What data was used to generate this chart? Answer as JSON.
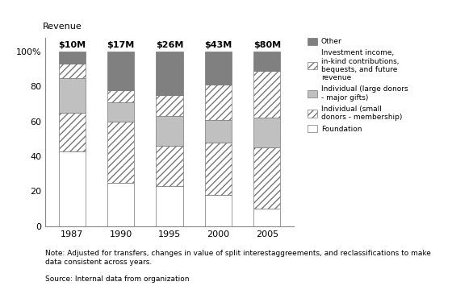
{
  "years": [
    "1987",
    "1990",
    "1995",
    "2000",
    "2005"
  ],
  "totals": [
    "$10M",
    "$17M",
    "$26M",
    "$43M",
    "$80M"
  ],
  "data": {
    "Foundation": [
      43,
      25,
      23,
      18,
      10
    ],
    "Small donors": [
      22,
      35,
      23,
      30,
      35
    ],
    "Large donors": [
      20,
      11,
      17,
      13,
      17
    ],
    "Investment": [
      8,
      7,
      12,
      20,
      27
    ],
    "Other": [
      7,
      22,
      25,
      19,
      11
    ]
  },
  "colors": {
    "Foundation": "#ffffff",
    "Small donors": "#ffffff",
    "Large donors": "#c0c0c0",
    "Investment": "#ffffff",
    "Other": "#808080"
  },
  "hatches": {
    "Foundation": "",
    "Small donors": "////",
    "Large donors": "",
    "Investment": "////",
    "Other": ""
  },
  "bar_edge_color": "#777777",
  "bar_width": 0.55,
  "ylabel_text": "Revenue",
  "ytick_labels": [
    "0",
    "20",
    "40",
    "60",
    "80",
    "100%"
  ],
  "ytick_values": [
    0,
    20,
    40,
    60,
    80,
    100
  ],
  "ylim": [
    0,
    108
  ],
  "note": "Note: Adjusted for transfers, changes in value of split interestaggreements, and reclassifications to make\ndata consistent across years.",
  "source": "Source: Internal data from organization",
  "legend": [
    {
      "label": "Other",
      "facecolor": "#808080",
      "hatch": ""
    },
    {
      "label": "Investment income,\nin-kind contributions,\nbequests, and future\nrevenue",
      "facecolor": "#ffffff",
      "hatch": "////"
    },
    {
      "label": "Individual (large donors\n- major gifts)",
      "facecolor": "#c0c0c0",
      "hatch": ""
    },
    {
      "label": "Individual (small\ndonors - membership)",
      "facecolor": "#ffffff",
      "hatch": "////"
    },
    {
      "label": "Foundation",
      "facecolor": "#ffffff",
      "hatch": ""
    }
  ],
  "background_color": "#ffffff"
}
